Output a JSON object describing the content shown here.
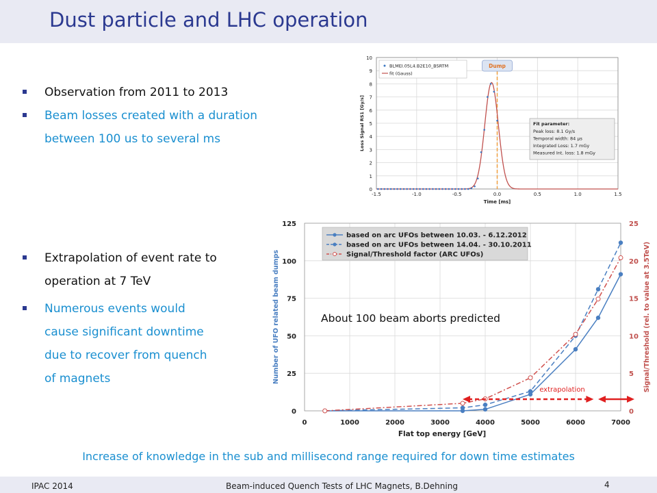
{
  "slide": {
    "title": "Dust particle and LHC operation",
    "bullets_top": [
      "Observation from 2011 to 2013",
      "Beam losses created with a duration",
      "between 100 us to several ms"
    ],
    "bullets_bottom": [
      "Extrapolation of event rate to",
      "operation at 7 TeV",
      "Numerous events would",
      "cause significant  downtime",
      "due to recover from quench",
      "of magnets"
    ],
    "conclusion": "Increase of knowledge in the sub and millisecond range required for down time estimates",
    "footer": {
      "left": "IPAC 2014",
      "center": "Beam-induced Quench Tests of LHC Magnets, B.Dehning",
      "page": "4"
    }
  },
  "chart_data": [
    {
      "type": "scatter",
      "xlabel": "Time [ms]",
      "ylabel": "Loss Signal RS1 [Gy/s]",
      "xlim": [
        -1.5,
        1.5
      ],
      "ylim": [
        0,
        10
      ],
      "xticks": [
        "-1.5",
        "-1.0",
        "-0.5",
        "0.0",
        "0.5",
        "1.0",
        "1.5"
      ],
      "yticks": [
        "0",
        "1",
        "2",
        "3",
        "4",
        "5",
        "6",
        "7",
        "8",
        "9",
        "10"
      ],
      "grid": true,
      "legend_position": "top-left",
      "marker_label": "Dump",
      "marker_x": 0.0,
      "fit_parameter": {
        "heading": "Fit parameter:",
        "lines": [
          "Peak loss: 8.1 Gy/s",
          "Temporal width: 84 µs",
          "Integrated Loss: 1.7 mGy",
          "Measured Int. loss: 1.8 mGy"
        ]
      },
      "series": [
        {
          "name": "BLMEI.05L4.B2E10_BSRTM",
          "kind": "points",
          "color": "#3b76c2",
          "x": [
            -1.48,
            -1.44,
            -1.4,
            -1.36,
            -1.32,
            -1.28,
            -1.24,
            -1.2,
            -1.16,
            -1.12,
            -1.08,
            -1.04,
            -1.0,
            -0.96,
            -0.92,
            -0.88,
            -0.84,
            -0.8,
            -0.76,
            -0.72,
            -0.68,
            -0.64,
            -0.6,
            -0.56,
            -0.52,
            -0.48,
            -0.44,
            -0.4,
            -0.36,
            -0.32,
            -0.28,
            -0.24,
            -0.2,
            -0.16,
            -0.12,
            -0.08,
            -0.04,
            0.0
          ],
          "y": [
            0,
            0,
            0,
            0,
            0,
            0,
            0,
            0,
            0,
            0,
            0,
            0,
            0,
            0,
            0,
            0,
            0,
            0,
            0,
            0,
            0,
            0,
            0,
            0,
            0,
            0,
            0,
            0,
            0,
            0.05,
            0.2,
            0.8,
            2.8,
            4.5,
            7.0,
            8.0,
            7.4,
            5.2
          ]
        },
        {
          "name": "fit (Gauss)",
          "kind": "line",
          "color": "#c0504d",
          "center": -0.07,
          "sigma": 0.084,
          "peak": 8.1
        }
      ]
    },
    {
      "type": "line",
      "xlabel": "Flat top energy [GeV]",
      "ylabel": "Number of UFO related beam dumps",
      "y2label": "Signal/Threshold (rel. to value at 3.5TeV)",
      "xlim": [
        0,
        7000
      ],
      "ylim": [
        0,
        125
      ],
      "y2lim": [
        0,
        25
      ],
      "xticks": [
        "0",
        "1000",
        "2000",
        "3000",
        "4000",
        "5000",
        "6000",
        "7000"
      ],
      "yticks": [
        "0",
        "25",
        "50",
        "75",
        "100",
        "125"
      ],
      "y2ticks": [
        "0",
        "5",
        "10",
        "15",
        "20",
        "25"
      ],
      "grid": true,
      "legend_position": "top-left",
      "annotation": "About 100 beam aborts predicted",
      "extrapolation_label": "extrapolation",
      "series": [
        {
          "name": "based on arc UFOs between 10.03. - 6.12.2012",
          "style": "solid",
          "color": "#4a7fc1",
          "axis": "left",
          "x": [
            450,
            3500,
            4000,
            5000,
            6000,
            6500,
            7000
          ],
          "y": [
            0,
            0,
            1,
            11,
            41,
            62,
            91
          ]
        },
        {
          "name": "based on arc UFOs between 14.04. - 30.10.2011",
          "style": "dashed",
          "color": "#4a7fc1",
          "axis": "left",
          "x": [
            450,
            3500,
            4000,
            5000,
            6000,
            6500,
            7000
          ],
          "y": [
            0,
            2,
            4,
            13,
            50,
            81,
            112
          ]
        },
        {
          "name": "Signal/Threshold factor (ARC UFOs)",
          "style": "dash-dot",
          "color": "#d0504d",
          "axis": "right",
          "x": [
            450,
            3500,
            4000,
            5000,
            6000,
            6500,
            7000
          ],
          "y": [
            0,
            1,
            1.6,
            4.4,
            10.2,
            14.9,
            20.4
          ]
        }
      ]
    }
  ]
}
